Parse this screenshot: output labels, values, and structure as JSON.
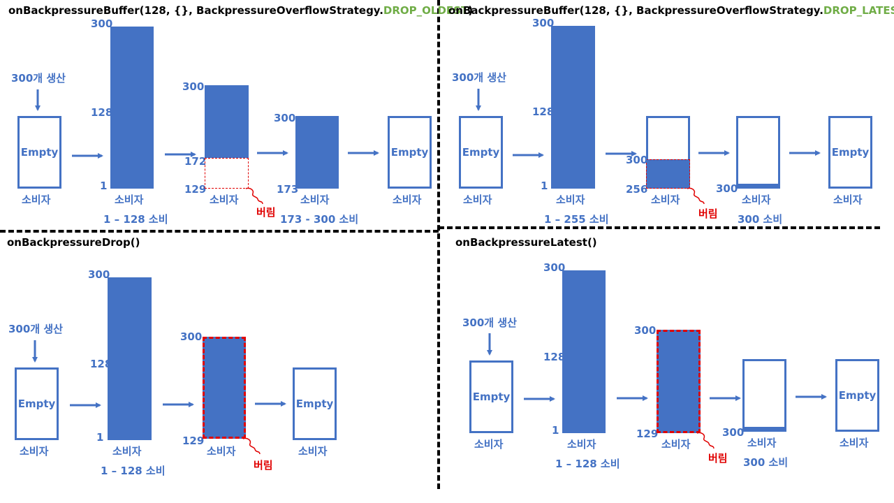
{
  "panels": {
    "drop_oldest": {
      "title_prefix": "onBackpressureBuffer(128, {}, BackpressureOverflowStrategy.",
      "title_highlight": "DROP_OLDEST",
      "title_suffix": ")",
      "produce": "300개 생산",
      "empty": "Empty",
      "consumer": "소비자",
      "n300": "300",
      "n128": "128",
      "n1": "1",
      "n172": "172",
      "n129": "129",
      "n173": "173",
      "drop": "버림",
      "consume1": "1 – 128 소비",
      "consume2": "173 - 300 소비"
    },
    "drop_latest": {
      "title_prefix": "onBackpressureBuffer(128, {}, BackpressureOverflowStrategy.",
      "title_highlight": "DROP_LATEST",
      "title_suffix": ")",
      "produce": "300개 생산",
      "empty": "Empty",
      "consumer": "소비자",
      "n300": "300",
      "n128": "128",
      "n1": "1",
      "n256": "256",
      "drop": "버림",
      "consume1": "1 – 255 소비",
      "consume2": "300 소비"
    },
    "drop": {
      "title": "onBackpressureDrop()",
      "produce": "300개 생산",
      "empty": "Empty",
      "consumer": "소비자",
      "n300": "300",
      "n128": "128",
      "n1": "1",
      "n129": "129",
      "drop": "버림",
      "consume1": "1 – 128 소비"
    },
    "latest": {
      "title": "onBackpressureLatest()",
      "produce": "300개 생산",
      "empty": "Empty",
      "consumer": "소비자",
      "n300": "300",
      "n128": "128",
      "n1": "1",
      "n129": "129",
      "drop": "버림",
      "consume1": "1 – 128 소비",
      "consume2": "300 소비"
    }
  },
  "colors": {
    "bar": "#4472c4",
    "highlight": "#70ad47",
    "drop": "#e00000"
  }
}
